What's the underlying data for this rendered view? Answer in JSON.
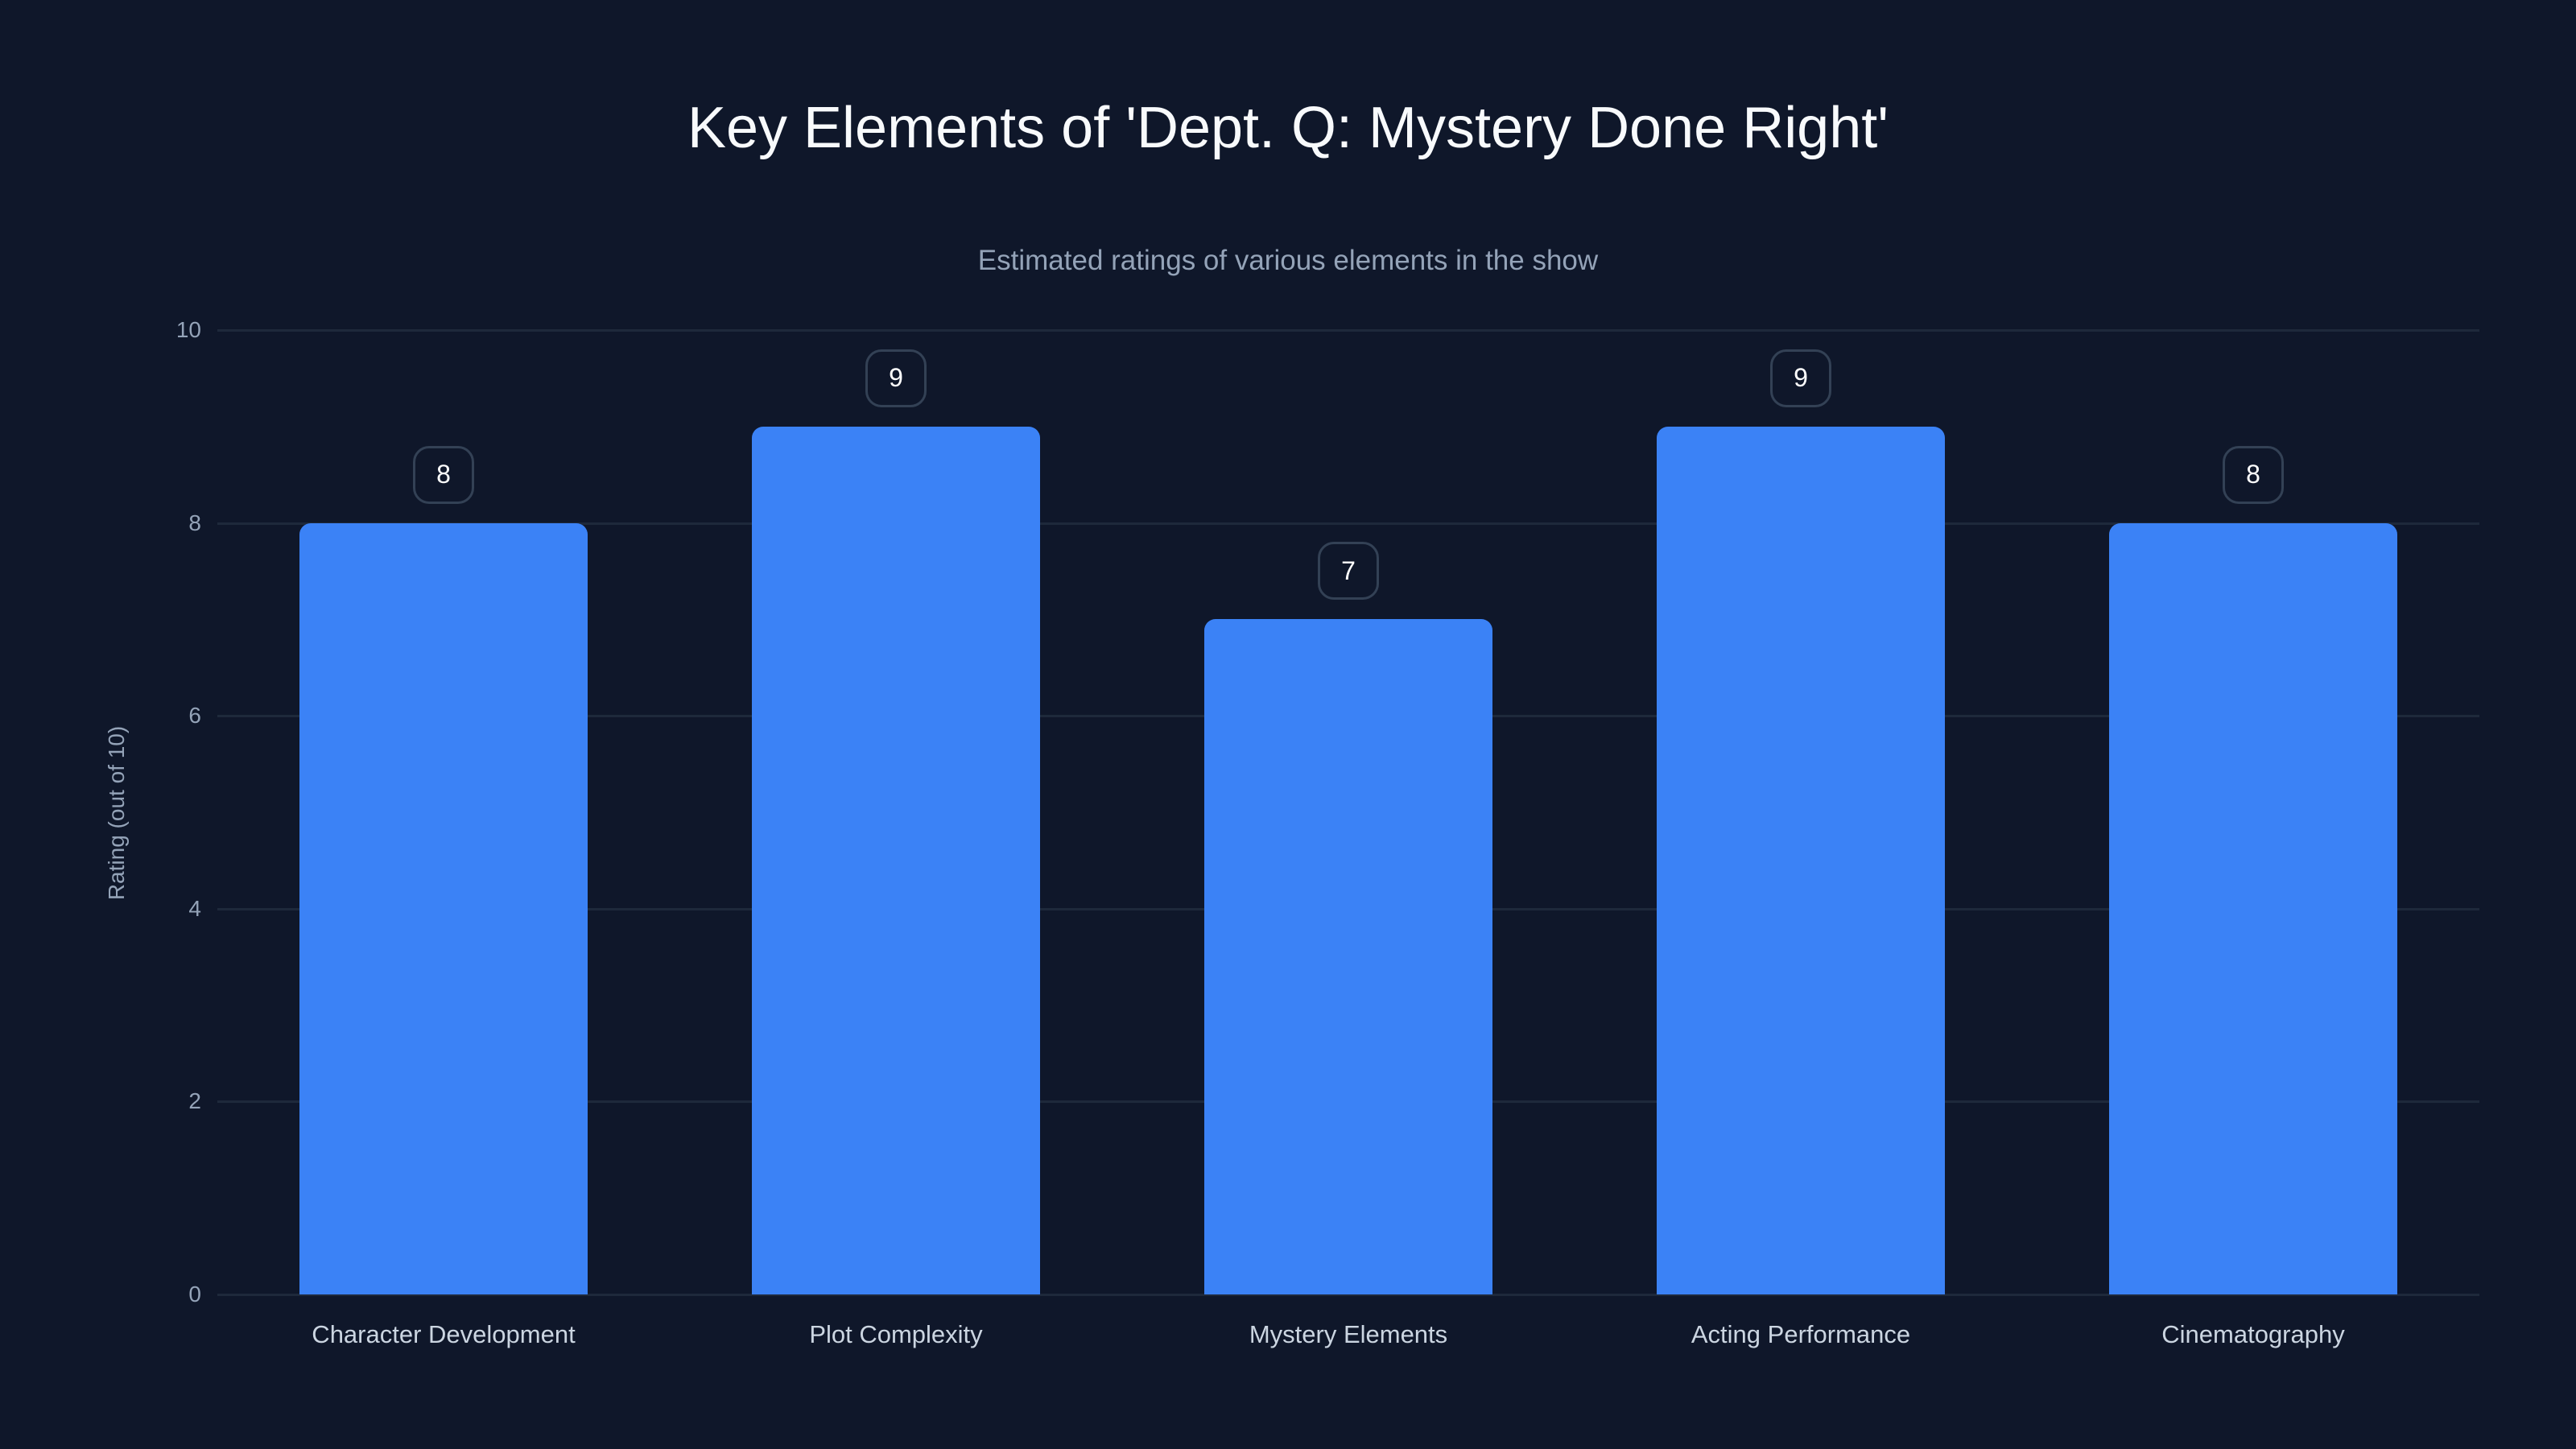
{
  "chart_data": {
    "type": "bar",
    "title": "Key Elements of 'Dept. Q: Mystery Done Right'",
    "subtitle": "Estimated ratings of various elements in the show",
    "xlabel": "",
    "ylabel": "Rating (out of 10)",
    "categories": [
      "Character Development",
      "Plot Complexity",
      "Mystery Elements",
      "Acting Performance",
      "Cinematography"
    ],
    "values": [
      8,
      9,
      7,
      9,
      8
    ],
    "data_labels": [
      "8",
      "9",
      "7",
      "9",
      "8"
    ],
    "ylim": [
      0,
      10
    ],
    "yticks": [
      "0",
      "2",
      "4",
      "6",
      "8",
      "10"
    ],
    "grid": true,
    "legend": null,
    "colors": {
      "background": "#0f172a",
      "bar": "#3b82f6",
      "grid": "#1e293b",
      "label_border": "#334155"
    }
  }
}
